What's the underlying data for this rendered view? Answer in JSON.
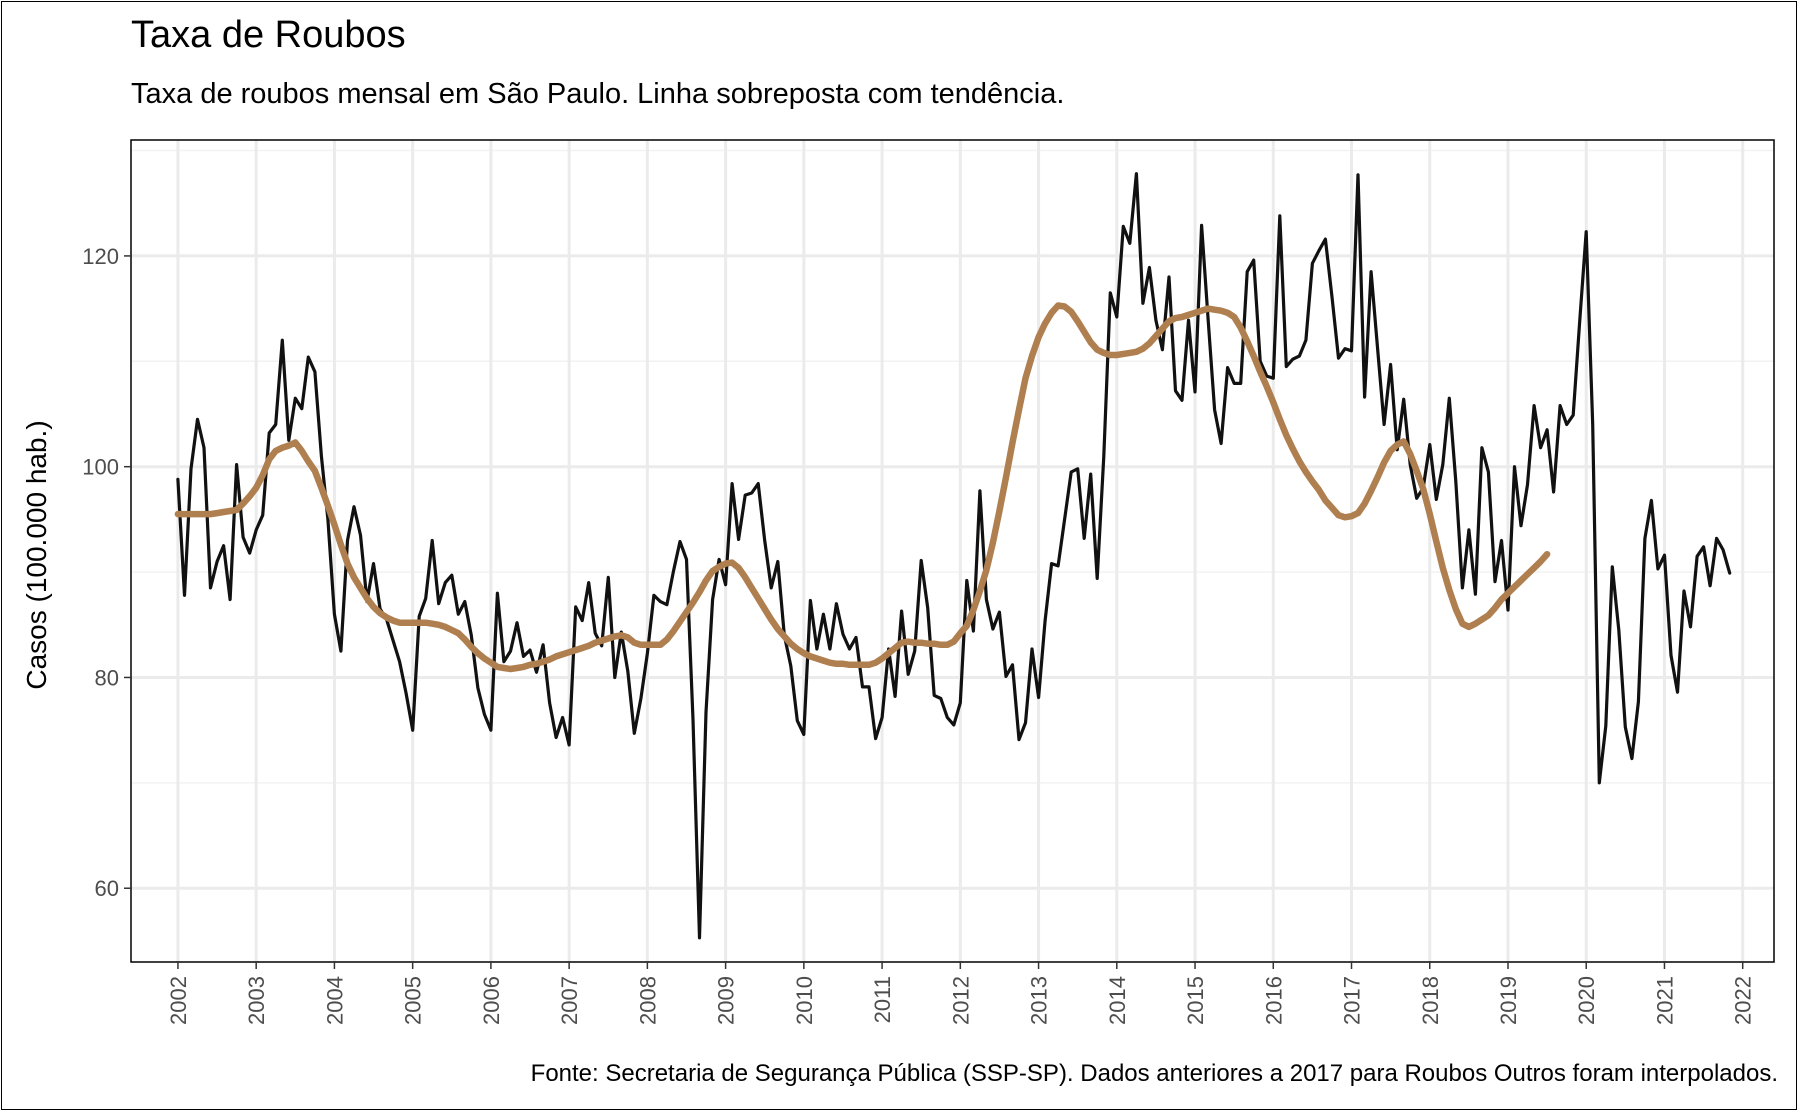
{
  "header": {
    "title": "Taxa de Roubos",
    "subtitle": "Taxa de roubos mensal em São Paulo. Linha sobreposta com tendência."
  },
  "footer": {
    "caption": "Fonte: Secretaria de Segurança Pública (SSP-SP). Dados anteriores a 2017 para Roubos Outros foram interpolados."
  },
  "chart_data": {
    "type": "line",
    "title": "Taxa de Roubos",
    "subtitle": "Taxa de roubos mensal em São Paulo. Linha sobreposta com tendência.",
    "xlabel": "",
    "ylabel": "Casos (100.000 hab.)",
    "xlim": [
      2001.4,
      2022.4
    ],
    "ylim": [
      53,
      131
    ],
    "x_ticks": [
      "2002",
      "2003",
      "2004",
      "2005",
      "2006",
      "2007",
      "2008",
      "2009",
      "2010",
      "2011",
      "2012",
      "2013",
      "2014",
      "2015",
      "2016",
      "2017",
      "2018",
      "2019",
      "2020",
      "2021",
      "2022"
    ],
    "y_ticks": [
      60,
      80,
      100,
      120
    ],
    "grid": true,
    "legend": "none",
    "x_start_year": 2002,
    "series": [
      {
        "color": "#111111",
        "values": [
          98.8,
          87.8,
          99.8,
          104.5,
          101.8,
          88.5,
          91,
          92.5,
          87.4,
          100.2,
          93.3,
          91.8,
          94,
          95.4,
          103.2,
          104,
          112,
          102.5,
          106.5,
          105.5,
          110.4,
          109,
          101,
          95,
          86,
          82.5,
          93,
          96.2,
          93.5,
          87.2,
          90.8,
          86.5,
          85.5,
          83.5,
          81.5,
          78.5,
          75,
          85.8,
          87.5,
          93,
          87,
          89,
          89.7,
          86,
          87.2,
          84,
          79,
          76.5,
          75,
          88,
          81.5,
          82.5,
          85.2,
          82,
          82.6,
          80.5,
          83.1,
          77.6,
          74.3,
          76.2,
          73.6,
          86.7,
          85.4,
          89,
          84.2,
          83,
          89.5,
          80,
          84.3,
          80.6,
          74.7,
          78,
          82.3,
          87.8,
          87.2,
          86.9,
          90.1,
          92.9,
          91.2,
          76,
          55.3,
          76.7,
          87.4,
          91.2,
          88.8,
          98.4,
          93.1,
          97.3,
          97.5,
          98.4,
          93,
          88.5,
          91,
          84,
          81.1,
          75.9,
          74.6,
          87.3,
          82.7,
          86,
          82.7,
          87,
          84.1,
          82.7,
          83.8,
          79.1,
          79.1,
          74.2,
          76.2,
          82.7,
          78.2,
          86.3,
          80.3,
          82.5,
          91.1,
          86.6,
          78.3,
          78,
          76.2,
          75.5,
          77.6,
          89.2,
          84.4,
          97.7,
          87.4,
          84.6,
          86.2,
          80.1,
          81.2,
          74.1,
          75.7,
          82.7,
          78.1,
          85.4,
          90.8,
          90.6,
          95,
          99.5,
          99.8,
          93.2,
          99.3,
          89.4,
          101,
          116.5,
          114.2,
          122.8,
          121.2,
          127.8,
          115.5,
          118.9,
          113.9,
          111.1,
          118,
          107.2,
          106.3,
          113.9,
          107.1,
          122.9,
          114,
          105.4,
          102.2,
          109.4,
          107.9,
          107.9,
          118.5,
          119.6,
          110,
          108.6,
          108.4,
          123.8,
          109.5,
          110.2,
          110.5,
          112,
          119.3,
          120.5,
          121.6,
          116.1,
          110.3,
          111.2,
          111,
          127.7,
          106.6,
          118.5,
          111.2,
          104,
          109.7,
          101.6,
          106.4,
          100.2,
          97,
          98,
          102.1,
          96.9,
          100.2,
          106.5,
          98.6,
          88.5,
          94,
          87.9,
          101.8,
          99.5,
          89.1,
          93,
          86.4,
          100,
          94.4,
          98.3,
          105.8,
          101.8,
          103.5,
          97.6,
          105.8,
          104,
          104.9,
          113.8,
          122.3,
          104,
          70,
          75.4,
          90.5,
          84.5,
          75.3,
          72.3,
          77.7,
          93.2,
          96.8,
          90.3,
          91.6,
          82.1,
          78.6,
          88.2,
          84.8,
          91.5,
          92.4,
          88.7,
          93.2,
          92.1,
          89.9
        ]
      },
      {
        "color": "#b07f4f",
        "values": [
          95.5,
          95.5,
          95.5,
          95.5,
          95.5,
          95.5,
          95.6,
          95.7,
          95.8,
          95.9,
          96.5,
          97.2,
          98,
          99.2,
          100.7,
          101.5,
          101.8,
          102,
          102.3,
          101.5,
          100.5,
          99.6,
          98,
          96.3,
          94.5,
          92.6,
          90.8,
          89.5,
          88.5,
          87.5,
          86.7,
          86.1,
          85.7,
          85.4,
          85.2,
          85.2,
          85.2,
          85.2,
          85.2,
          85.1,
          85,
          84.8,
          84.5,
          84.2,
          83.6,
          82.9,
          82.3,
          81.8,
          81.4,
          81,
          80.9,
          80.8,
          80.9,
          81,
          81.2,
          81.3,
          81.5,
          81.7,
          82,
          82.2,
          82.4,
          82.6,
          82.8,
          83,
          83.3,
          83.5,
          83.7,
          83.9,
          84,
          83.8,
          83.3,
          83.1,
          83.1,
          83.1,
          83.1,
          83.6,
          84.4,
          85.3,
          86.2,
          87.1,
          88.1,
          89.2,
          90.1,
          90.5,
          90.8,
          90.9,
          90.4,
          89.5,
          88.5,
          87.5,
          86.5,
          85.5,
          84.6,
          83.9,
          83.2,
          82.7,
          82.3,
          82,
          81.8,
          81.6,
          81.4,
          81.3,
          81.3,
          81.2,
          81.2,
          81.2,
          81.2,
          81.4,
          81.8,
          82.3,
          82.8,
          83.3,
          83.4,
          83.3,
          83.3,
          83.2,
          83.2,
          83.1,
          83.1,
          83.4,
          84.2,
          84.9,
          86.4,
          88.2,
          90.2,
          92.8,
          95.8,
          99,
          102.3,
          105.4,
          108.4,
          110.5,
          112.3,
          113.6,
          114.6,
          115.3,
          115.2,
          114.7,
          113.8,
          112.8,
          111.8,
          111.1,
          110.8,
          110.6,
          110.6,
          110.7,
          110.8,
          110.9,
          111.2,
          111.7,
          112.4,
          113.1,
          113.8,
          114.1,
          114.2,
          114.4,
          114.6,
          114.8,
          115,
          114.9,
          114.8,
          114.6,
          114.2,
          113.2,
          111.9,
          110.5,
          109,
          107.6,
          106.1,
          104.5,
          103,
          101.7,
          100.5,
          99.5,
          98.6,
          97.8,
          96.8,
          96.1,
          95.4,
          95.2,
          95.3,
          95.6,
          96.5,
          97.7,
          99,
          100.4,
          101.5,
          102.1,
          102.4,
          101.2,
          99.6,
          97.9,
          95.5,
          92.9,
          90.4,
          88.3,
          86.5,
          85.1,
          84.8,
          85.1,
          85.5,
          85.9,
          86.6,
          87.4,
          88,
          88.6,
          89.2,
          89.8,
          90.4,
          91,
          91.7
        ]
      }
    ]
  }
}
